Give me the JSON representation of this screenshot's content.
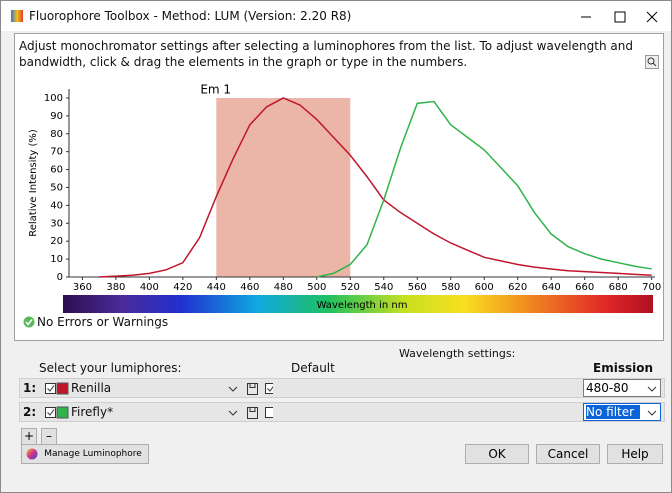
{
  "window": {
    "title": "Fluorophore Toolbox - Method: LUM (Version: 2.20 R8)"
  },
  "instructions": "Adjust monochromator settings after selecting a luminophores from the list. To adjust wavelength and bandwidth, click & drag the elements in the graph or type in the numbers.",
  "chart_data": {
    "type": "line",
    "annotation": "Em 1",
    "band": [
      440,
      520
    ],
    "ylabel": "Relative Intensity (%)",
    "xlabel": "Wavelength in nm",
    "x": [
      370,
      380,
      390,
      400,
      410,
      420,
      430,
      440,
      450,
      460,
      470,
      480,
      490,
      500,
      510,
      520,
      530,
      540,
      550,
      560,
      570,
      580,
      590,
      600,
      610,
      620,
      630,
      640,
      650,
      660,
      670,
      680,
      690,
      700
    ],
    "series": [
      {
        "color": "#c0162c",
        "values": [
          0,
          0.5,
          1,
          2,
          4,
          8,
          22,
          45,
          66,
          85,
          95,
          100,
          96,
          88,
          78,
          68,
          56,
          43,
          36,
          30,
          24,
          19,
          15,
          11,
          9,
          7,
          5.5,
          4.5,
          3.5,
          3,
          2.5,
          2,
          1.5,
          1
        ]
      },
      {
        "color": "#2fb34a",
        "values": [
          null,
          null,
          null,
          null,
          null,
          null,
          null,
          null,
          null,
          null,
          null,
          null,
          null,
          0,
          2,
          7,
          18,
          43,
          72,
          97,
          98,
          85,
          78,
          71,
          61,
          51,
          36,
          24,
          17,
          13,
          10,
          8,
          6,
          4.5
        ]
      }
    ],
    "xlim": [
      352,
      702
    ],
    "xticks": [
      360,
      380,
      400,
      420,
      440,
      460,
      480,
      500,
      520,
      540,
      560,
      580,
      600,
      620,
      640,
      660,
      680,
      700
    ],
    "ylim": [
      0,
      105
    ],
    "yticks": [
      0,
      10,
      20,
      30,
      40,
      50,
      60,
      70,
      80,
      90,
      100
    ]
  },
  "status": "No Errors or Warnings",
  "settings": {
    "heading": "Wavelength settings:",
    "select_label": "Select your lumiphores:",
    "default_label": "Default",
    "emission_label": "Emission",
    "rows": [
      {
        "index": "1:",
        "name": "Renilla",
        "emission": "480-80"
      },
      {
        "index": "2:",
        "name": "Firefly*",
        "emission": "No filter"
      }
    ]
  },
  "buttons": {
    "add": "+",
    "remove": "–",
    "manage": "Manage Luminophore",
    "ok": "OK",
    "cancel": "Cancel",
    "help": "Help"
  }
}
